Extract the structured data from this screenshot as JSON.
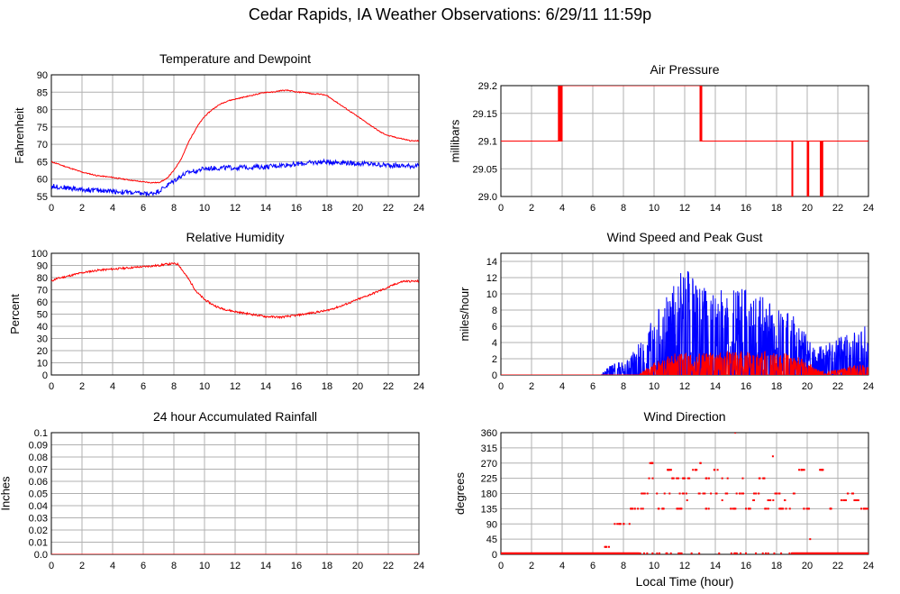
{
  "page": {
    "title": "Cedar Rapids, IA Weather Observations: 6/29/11 11:59p",
    "x_axis_caption": "Local Time (hour)"
  },
  "chart_data": [
    {
      "id": "temp",
      "type": "line",
      "title": "Temperature and Dewpoint",
      "xlabel": "",
      "ylabel": "Fahrenheit",
      "xlim": [
        0,
        24
      ],
      "ylim": [
        55,
        90
      ],
      "xticks": [
        0,
        2,
        4,
        6,
        8,
        10,
        12,
        14,
        16,
        18,
        20,
        22,
        24
      ],
      "yticks": [
        55,
        60,
        65,
        70,
        75,
        80,
        85,
        90
      ],
      "ytick_labels": [
        "55",
        "60",
        "65",
        "70",
        "75",
        "80",
        "85",
        "90"
      ],
      "grid": true,
      "series": [
        {
          "color": "#ff0000",
          "noise": 0.15,
          "x": [
            0,
            1,
            2,
            3,
            4,
            5,
            6,
            6.5,
            7,
            7.5,
            8,
            8.5,
            9,
            9.5,
            10,
            10.5,
            11,
            11.5,
            12,
            12.5,
            13,
            13.5,
            14,
            14.5,
            15,
            15.5,
            16,
            16.5,
            17,
            17.5,
            18,
            18.5,
            19,
            19.5,
            20,
            20.5,
            21,
            21.5,
            22,
            22.5,
            23,
            23.5,
            24
          ],
          "y": [
            65,
            63.5,
            62,
            61,
            60.5,
            59.8,
            59.2,
            59,
            59,
            60,
            62.5,
            66,
            71,
            75,
            78,
            80,
            81.5,
            82.5,
            83,
            83.5,
            84,
            84.5,
            85,
            85,
            85.5,
            85.5,
            85,
            85,
            84.5,
            84.5,
            84,
            82.5,
            81,
            79.5,
            78,
            76.5,
            75,
            73.5,
            72.5,
            72,
            71.5,
            71,
            71
          ]
        },
        {
          "color": "#0000ff",
          "noise": 0.7,
          "x": [
            0,
            1,
            2,
            3,
            4,
            5,
            6,
            6.5,
            7,
            7.5,
            8,
            8.5,
            9,
            9.5,
            10,
            11,
            12,
            13,
            14,
            15,
            16,
            17,
            18,
            19,
            20,
            21,
            22,
            23,
            24
          ],
          "y": [
            58,
            57.5,
            57,
            56.8,
            56.5,
            56.2,
            55.8,
            55.8,
            56.5,
            58,
            59.5,
            61,
            62,
            62.5,
            63,
            63.2,
            63.3,
            63.5,
            63.5,
            64,
            64.3,
            64.7,
            65,
            64.8,
            64.5,
            64.3,
            64,
            63.8,
            63.8
          ]
        }
      ]
    },
    {
      "id": "pressure",
      "type": "line",
      "title": "Air Pressure",
      "xlabel": "",
      "ylabel": "millibars",
      "xlim": [
        0,
        24
      ],
      "ylim": [
        29.0,
        29.2
      ],
      "xticks": [
        0,
        2,
        4,
        6,
        8,
        10,
        12,
        14,
        16,
        18,
        20,
        22,
        24
      ],
      "yticks": [
        29.0,
        29.05,
        29.1,
        29.15,
        29.2
      ],
      "ytick_labels": [
        "29.0",
        "29.05",
        "29.1",
        "29.15",
        "29.2"
      ],
      "grid": true,
      "series": [
        {
          "color": "#ff0000",
          "step": true,
          "x": [
            0,
            3.75,
            3.78,
            3.8,
            3.83,
            3.86,
            3.88,
            3.9,
            3.93,
            3.95,
            3.98,
            4.0,
            13.0,
            13.02,
            13.04,
            13.06,
            13.08,
            13.1,
            13.12,
            13.14,
            19.0,
            19.02,
            19.04,
            19.06,
            19.08,
            20.0,
            20.02,
            20.04,
            20.06,
            20.08,
            20.1,
            20.85,
            20.88,
            20.9,
            20.93,
            20.96,
            20.98,
            21.0,
            21.02,
            24
          ],
          "y": [
            29.1,
            29.2,
            29.1,
            29.2,
            29.1,
            29.2,
            29.1,
            29.2,
            29.1,
            29.2,
            29.1,
            29.2,
            29.1,
            29.2,
            29.1,
            29.2,
            29.1,
            29.2,
            29.1,
            29.1,
            29.0,
            29.1,
            29.0,
            29.1,
            29.1,
            29.0,
            29.1,
            29.0,
            29.1,
            29.0,
            29.1,
            29.0,
            29.1,
            29.0,
            29.1,
            29.0,
            29.1,
            29.0,
            29.1,
            29.1
          ]
        }
      ]
    },
    {
      "id": "humidity",
      "type": "line",
      "title": "Relative Humidity",
      "xlabel": "",
      "ylabel": "Percent",
      "xlim": [
        0,
        24
      ],
      "ylim": [
        0,
        100
      ],
      "xticks": [
        0,
        2,
        4,
        6,
        8,
        10,
        12,
        14,
        16,
        18,
        20,
        22,
        24
      ],
      "yticks": [
        0,
        10,
        20,
        30,
        40,
        50,
        60,
        70,
        80,
        90,
        100
      ],
      "ytick_labels": [
        "0",
        "10",
        "20",
        "30",
        "40",
        "50",
        "60",
        "70",
        "80",
        "90",
        "100"
      ],
      "grid": true,
      "series": [
        {
          "color": "#ff0000",
          "noise": 0.8,
          "x": [
            0,
            0.3,
            1,
            2,
            3,
            4,
            5,
            6,
            7,
            7.5,
            8,
            8.3,
            8.5,
            9,
            9.5,
            10,
            10.5,
            11,
            12,
            13,
            14,
            15,
            16,
            17,
            18,
            19,
            20,
            21,
            22,
            22.5,
            23,
            23.5,
            24
          ],
          "y": [
            77,
            79,
            81,
            84,
            86,
            87,
            88,
            89,
            90,
            91,
            91.5,
            91,
            87,
            78,
            68,
            62,
            58,
            55,
            52,
            50,
            48,
            47.5,
            49,
            51,
            53,
            57,
            62,
            67,
            72,
            75,
            77,
            77,
            77
          ]
        }
      ]
    },
    {
      "id": "wind",
      "type": "line",
      "title": "Wind Speed and Peak Gust",
      "xlabel": "",
      "ylabel": "miles/hour",
      "xlim": [
        0,
        24
      ],
      "ylim": [
        0,
        15
      ],
      "xticks": [
        0,
        2,
        4,
        6,
        8,
        10,
        12,
        14,
        16,
        18,
        20,
        22,
        24
      ],
      "yticks": [
        0,
        2,
        4,
        6,
        8,
        10,
        12,
        14
      ],
      "ytick_labels": [
        "0",
        "2",
        "4",
        "6",
        "8",
        "10",
        "12",
        "14"
      ],
      "grid": true,
      "series": [
        {
          "color": "#0000ff",
          "spiky": true,
          "x": [
            0,
            6.5,
            7,
            7.5,
            8,
            8.5,
            9,
            9.5,
            10,
            10.5,
            11,
            11.5,
            12,
            12.5,
            13,
            13.5,
            14,
            14.5,
            15,
            15.5,
            16,
            16.5,
            17,
            17.5,
            18,
            18.5,
            19,
            19.5,
            20,
            20.5,
            21,
            21.5,
            22,
            22.5,
            23,
            23.5,
            24
          ],
          "y": [
            0,
            0,
            0.6,
            1,
            1,
            1.5,
            2.5,
            3.5,
            4.5,
            5.5,
            6.5,
            7.5,
            9,
            7.5,
            7,
            6.5,
            7,
            6.5,
            7,
            6.5,
            7,
            6,
            6.5,
            6,
            6,
            5,
            5,
            4,
            3.5,
            2.5,
            2.5,
            2.5,
            3,
            3,
            3.5,
            4,
            4
          ]
        },
        {
          "color": "#ff0000",
          "spiky": true,
          "x": [
            0,
            9,
            9.5,
            10,
            11,
            12,
            13,
            14,
            15,
            16,
            17,
            18,
            19,
            20,
            20.5,
            21,
            22,
            23,
            24
          ],
          "y": [
            0,
            0,
            0.6,
            1,
            1.6,
            1.8,
            1.8,
            1.8,
            1.8,
            1.8,
            1.8,
            1.8,
            1.6,
            1.2,
            0.5,
            0.3,
            0.4,
            0.8,
            0.8
          ]
        }
      ]
    },
    {
      "id": "rain",
      "type": "line",
      "title": "24 hour Accumulated Rainfall",
      "xlabel": "",
      "ylabel": "Inches",
      "xlim": [
        0,
        24
      ],
      "ylim": [
        0,
        0.1
      ],
      "xticks": [
        0,
        2,
        4,
        6,
        8,
        10,
        12,
        14,
        16,
        18,
        20,
        22,
        24
      ],
      "yticks": [
        0,
        0.01,
        0.02,
        0.03,
        0.04,
        0.05,
        0.06,
        0.07,
        0.08,
        0.09,
        0.1
      ],
      "ytick_labels": [
        "0.0",
        "0.01",
        "0.02",
        "0.03",
        "0.04",
        "0.05",
        "0.06",
        "0.07",
        "0.08",
        "0.09",
        "0.1"
      ],
      "grid": true,
      "series": [
        {
          "color": "#ff0000",
          "x": [
            0,
            24
          ],
          "y": [
            0,
            0
          ]
        }
      ]
    },
    {
      "id": "direction",
      "type": "scatter",
      "title": "Wind Direction",
      "xlabel": "Local Time (hour)",
      "ylabel": "degrees",
      "xlim": [
        0,
        24
      ],
      "ylim": [
        0,
        360
      ],
      "xticks": [
        0,
        2,
        4,
        6,
        8,
        10,
        12,
        14,
        16,
        18,
        20,
        22,
        24
      ],
      "yticks": [
        0,
        45,
        90,
        135,
        180,
        225,
        270,
        315,
        360
      ],
      "ytick_labels": [
        "0",
        "45",
        "90",
        "135",
        "180",
        "225",
        "270",
        "315",
        "360"
      ],
      "grid": true,
      "series": [
        {
          "color": "#ff0000",
          "points": [
            [
              7.0,
              22
            ],
            [
              7.6,
              90
            ],
            [
              8.2,
              90
            ],
            [
              8.6,
              135
            ],
            [
              9.1,
              135
            ],
            [
              9.4,
              180
            ],
            [
              9.7,
              270
            ],
            [
              9.9,
              225
            ],
            [
              10.2,
              180
            ],
            [
              10.5,
              135
            ],
            [
              10.8,
              180
            ],
            [
              11.1,
              250
            ],
            [
              11.4,
              225
            ],
            [
              11.6,
              135
            ],
            [
              11.9,
              180
            ],
            [
              12.1,
              225
            ],
            [
              12.3,
              160
            ],
            [
              12.6,
              250
            ],
            [
              12.9,
              270
            ],
            [
              13.1,
              180
            ],
            [
              13.4,
              225
            ],
            [
              13.6,
              135
            ],
            [
              13.9,
              180
            ],
            [
              14.1,
              250
            ],
            [
              14.3,
              160
            ],
            [
              14.6,
              225
            ],
            [
              14.9,
              180
            ],
            [
              15.1,
              135
            ],
            [
              15.3,
              360
            ],
            [
              15.6,
              180
            ],
            [
              15.9,
              225
            ],
            [
              16.1,
              135
            ],
            [
              16.4,
              160
            ],
            [
              16.7,
              180
            ],
            [
              17.0,
              225
            ],
            [
              17.3,
              135
            ],
            [
              17.6,
              160
            ],
            [
              17.9,
              290
            ],
            [
              18.1,
              180
            ],
            [
              18.4,
              135
            ],
            [
              18.7,
              160
            ],
            [
              19.0,
              135
            ],
            [
              19.3,
              180
            ],
            [
              19.6,
              250
            ],
            [
              19.9,
              135
            ],
            [
              20.2,
              45
            ],
            [
              20.9,
              250
            ],
            [
              21.7,
              135
            ],
            [
              22.4,
              160
            ],
            [
              22.8,
              180
            ],
            [
              23.3,
              160
            ],
            [
              23.7,
              135
            ],
            [
              24.0,
              135
            ]
          ]
        }
      ]
    }
  ]
}
